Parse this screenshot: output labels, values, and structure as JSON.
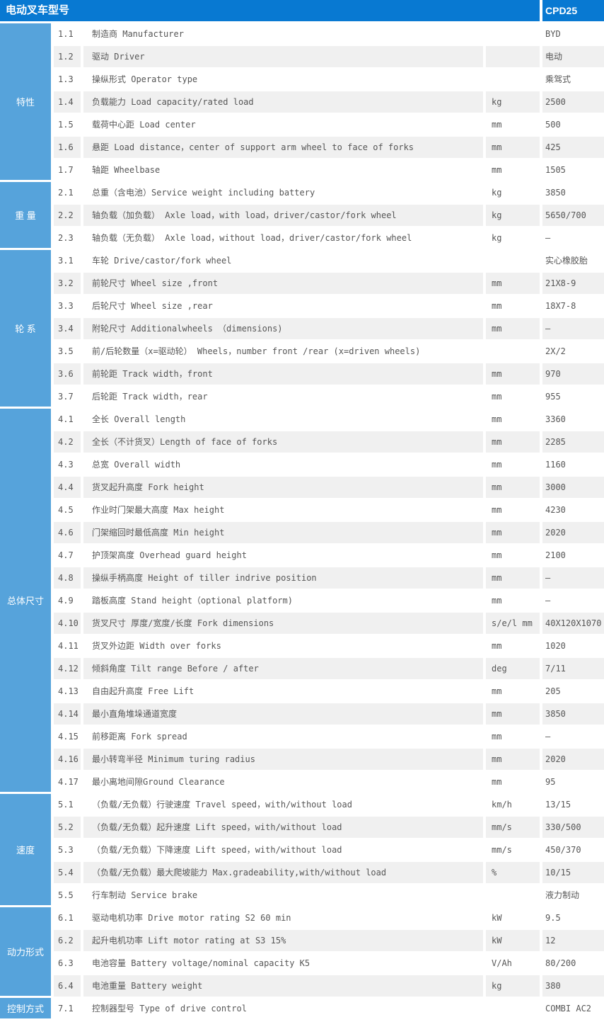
{
  "header": {
    "title": "电动叉车型号",
    "model": "CPD25"
  },
  "colors": {
    "header_bg": "#0879d2",
    "sidebar_bg": "#56a3db",
    "row_alt_bg": "#f0f0f0",
    "text": "#565656"
  },
  "sections": [
    {
      "label": "特性",
      "rows": [
        {
          "no": "1.1",
          "desc": "制造商 Manufacturer",
          "unit": "",
          "value": "BYD"
        },
        {
          "no": "1.2",
          "desc": "驱动 Driver",
          "unit": "",
          "value": "电动"
        },
        {
          "no": "1.3",
          "desc": "操纵形式 Operator type",
          "unit": "",
          "value": "乘驾式"
        },
        {
          "no": "1.4",
          "desc": "负载能力 Load capacity/rated load",
          "unit": "kg",
          "value": "2500"
        },
        {
          "no": "1.5",
          "desc": "载荷中心距 Load center",
          "unit": "mm",
          "value": "500"
        },
        {
          "no": "1.6",
          "desc": "悬距 Load distance，center of support arm wheel to face of forks",
          "unit": "mm",
          "value": "425"
        },
        {
          "no": "1.7",
          "desc": "轴距 Wheelbase",
          "unit": "mm",
          "value": "1505"
        }
      ]
    },
    {
      "label": "重 量",
      "rows": [
        {
          "no": "2.1",
          "desc": "总重（含电池）Service weight including battery",
          "unit": "kg",
          "value": "3850"
        },
        {
          "no": "2.2",
          "desc": "轴负载（加负载） Axle load，with load，driver/castor/fork wheel",
          "unit": "kg",
          "value": "5650/700"
        },
        {
          "no": "2.3",
          "desc": "轴负载（无负载） Axle load，without load，driver/castor/fork wheel",
          "unit": "kg",
          "value": "—"
        }
      ]
    },
    {
      "label": "轮 系",
      "rows": [
        {
          "no": "3.1",
          "desc": "车轮 Drive/castor/fork wheel",
          "unit": "",
          "value": "实心橡胶胎"
        },
        {
          "no": "3.2",
          "desc": "前轮尺寸 Wheel size ,front",
          "unit": "mm",
          "value": "21X8-9"
        },
        {
          "no": "3.3",
          "desc": "后轮尺寸 Wheel size ,rear",
          "unit": "mm",
          "value": "18X7-8"
        },
        {
          "no": "3.4",
          "desc": "附轮尺寸 Additionalwheels （dimensions)",
          "unit": "mm",
          "value": "—"
        },
        {
          "no": "3.5",
          "desc": "前/后轮数量（x=驱动轮） Wheels，number front /rear (x=driven wheels)",
          "unit": "",
          "value": "2X/2"
        },
        {
          "no": "3.6",
          "desc": "前轮距 Track width，front",
          "unit": "mm",
          "value": "970"
        },
        {
          "no": "3.7",
          "desc": "后轮距 Track width，rear",
          "unit": "mm",
          "value": "955"
        }
      ]
    },
    {
      "label": "总体尺寸",
      "rows": [
        {
          "no": "4.1",
          "desc": "全长 Overall length",
          "unit": "mm",
          "value": "3360"
        },
        {
          "no": "4.2",
          "desc": "全长（不计货叉）Length of face of forks",
          "unit": "mm",
          "value": "2285"
        },
        {
          "no": "4.3",
          "desc": "总宽 Overall width",
          "unit": "mm",
          "value": "1160"
        },
        {
          "no": "4.4",
          "desc": "货叉起升高度 Fork height",
          "unit": "mm",
          "value": "3000"
        },
        {
          "no": "4.5",
          "desc": "作业时门架最大高度 Max height",
          "unit": "mm",
          "value": "4230"
        },
        {
          "no": "4.6",
          "desc": "门架缩回时最低高度 Min height",
          "unit": "mm",
          "value": "2020"
        },
        {
          "no": "4.7",
          "desc": "护顶架高度 Overhead guard height",
          "unit": "mm",
          "value": "2100"
        },
        {
          "no": "4.8",
          "desc": "操纵手柄高度 Height of tiller indrive position",
          "unit": "mm",
          "value": "—"
        },
        {
          "no": "4.9",
          "desc": "踏板高度 Stand height（optional platform)",
          "unit": "mm",
          "value": "—"
        },
        {
          "no": "4.10",
          "desc": "货叉尺寸 厚度/宽度/长度 Fork dimensions",
          "unit": "s/e/l mm",
          "value": "40X120X1070"
        },
        {
          "no": "4.11",
          "desc": "货叉外边距 Width over forks",
          "unit": "mm",
          "value": "1020"
        },
        {
          "no": "4.12",
          "desc": "倾斜角度 Tilt range Before / after",
          "unit": "deg",
          "value": "7/11"
        },
        {
          "no": "4.13",
          "desc": "自由起升高度 Free Lift",
          "unit": "mm",
          "value": "205"
        },
        {
          "no": "4.14",
          "desc": "最小直角堆垛通道宽度",
          "unit": "mm",
          "value": "3850"
        },
        {
          "no": "4.15",
          "desc": "前移距离 Fork spread",
          "unit": "mm",
          "value": "—"
        },
        {
          "no": "4.16",
          "desc": "最小转弯半径 Minimum turing radius",
          "unit": "mm",
          "value": "2020"
        },
        {
          "no": "4.17",
          "desc": "最小离地间隙Ground Clearance",
          "unit": "mm",
          "value": "95"
        }
      ]
    },
    {
      "label": "速度",
      "rows": [
        {
          "no": "5.1",
          "desc": "（负载/无负载）行驶速度 Travel speed，with/without load",
          "unit": "km/h",
          "value": "13/15"
        },
        {
          "no": "5.2",
          "desc": "（负载/无负载）起升速度 Lift speed，with/without load",
          "unit": "mm/s",
          "value": "330/500"
        },
        {
          "no": "5.3",
          "desc": "（负载/无负载）下降速度 Lift speed，with/without load",
          "unit": "mm/s",
          "value": "450/370"
        },
        {
          "no": "5.4",
          "desc": "（负载/无负载）最大爬坡能力 Max.gradeability,with/without load",
          "unit": "%",
          "value": "10/15"
        },
        {
          "no": "5.5",
          "desc": "行车制动 Service brake",
          "unit": "",
          "value": "液力制动"
        }
      ]
    },
    {
      "label": "动力形式",
      "rows": [
        {
          "no": "6.1",
          "desc": "驱动电机功率 Drive motor rating S2 60 min",
          "unit": "kW",
          "value": "9.5"
        },
        {
          "no": "6.2",
          "desc": "起升电机功率 Lift motor rating at S3 15%",
          "unit": "kW",
          "value": "12"
        },
        {
          "no": "6.3",
          "desc": "电池容量 Battery voltage/nominal capacity K5",
          "unit": "V/Ah",
          "value": "80/200"
        },
        {
          "no": "6.4",
          "desc": "电池重量 Battery weight",
          "unit": "kg",
          "value": "380"
        }
      ]
    },
    {
      "label": "控制方式",
      "rows": [
        {
          "no": "7.1",
          "desc": "控制器型号 Type of drive control",
          "unit": "",
          "value": "COMBI AC2"
        }
      ]
    }
  ]
}
